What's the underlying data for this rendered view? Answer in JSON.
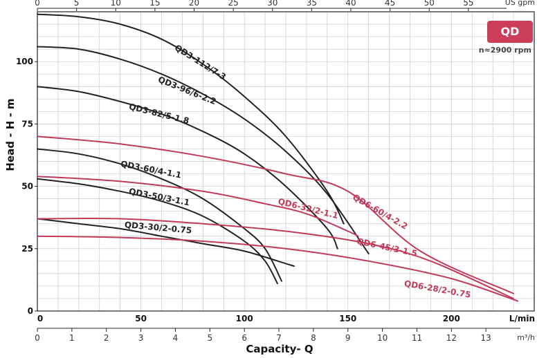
{
  "chart_data": {
    "type": "line",
    "badge": "QD",
    "speed": "n≈2900 rpm",
    "xlabel": "Capacity- Q",
    "ylabel": "Head - H - m",
    "x_unit_lmin": "L/min",
    "x_unit_m3h": "m³/h",
    "top_unit": "US gpm",
    "xlim_lmin": [
      0,
      240
    ],
    "ylim_m": [
      0,
      120
    ],
    "y_ticks": [
      0,
      25,
      50,
      75,
      100
    ],
    "x_ticks_lmin": [
      0,
      50,
      100,
      150,
      200
    ],
    "x_ticks_m3h": [
      0,
      1,
      2,
      3,
      4,
      5,
      6,
      7,
      8,
      9,
      10,
      11,
      12,
      13
    ],
    "x_ticks_gpm": [
      0,
      5,
      10,
      15,
      20,
      25,
      30,
      35,
      40,
      45,
      50,
      55
    ],
    "colors": {
      "qd3": "#222222",
      "qd6": "#c23a5a",
      "badge": "#cc3d5a"
    },
    "series": [
      {
        "name": "QD3-112/7-3",
        "family": "qd3",
        "q": [
          0,
          20,
          40,
          60,
          80,
          100,
          120,
          140,
          148
        ],
        "h": [
          119,
          118,
          115,
          109,
          99,
          86,
          70,
          48,
          35
        ]
      },
      {
        "name": "QD3-96/6-2.2",
        "family": "qd3",
        "q": [
          0,
          20,
          40,
          60,
          80,
          100,
          120,
          140,
          160
        ],
        "h": [
          106,
          105,
          101,
          95,
          87,
          77,
          64,
          47,
          23
        ]
      },
      {
        "name": "QD3-82/5-1.8",
        "family": "qd3",
        "q": [
          0,
          20,
          40,
          60,
          80,
          100,
          120,
          140,
          145
        ],
        "h": [
          90,
          88,
          84,
          79,
          72,
          63,
          50,
          33,
          25
        ]
      },
      {
        "name": "QD3-60/4-1.1",
        "family": "qd3",
        "q": [
          0,
          20,
          40,
          60,
          80,
          100,
          110,
          118
        ],
        "h": [
          65,
          63,
          59,
          53,
          45,
          33,
          25,
          12
        ]
      },
      {
        "name": "QD3-50/3-1.1",
        "family": "qd3",
        "q": [
          0,
          20,
          40,
          60,
          80,
          100,
          110,
          116
        ],
        "h": [
          53,
          51,
          48,
          44,
          38,
          28,
          20,
          11
        ]
      },
      {
        "name": "QD3-30/2-0.75",
        "family": "qd3",
        "q": [
          0,
          20,
          40,
          60,
          80,
          100,
          120,
          124
        ],
        "h": [
          37,
          35,
          33,
          30,
          27,
          24,
          19,
          18
        ]
      },
      {
        "name": "QD6-60/4-2.2",
        "family": "qd6",
        "q": [
          0,
          40,
          80,
          120,
          150,
          185,
          230
        ],
        "h": [
          70,
          67,
          62,
          55,
          48,
          24,
          7
        ]
      },
      {
        "name": "QD6-32/2-1.1",
        "family": "qd6",
        "q": [
          0,
          40,
          80,
          110,
          130,
          150,
          155
        ],
        "h": [
          54,
          52,
          48,
          43,
          39,
          32,
          30
        ]
      },
      {
        "name": "QD6-45/3-1.5",
        "family": "qd6",
        "q": [
          0,
          40,
          80,
          120,
          160,
          190,
          230
        ],
        "h": [
          37,
          37,
          35,
          32,
          27,
          20,
          5
        ]
      },
      {
        "name": "QD6-28/2-0.75",
        "family": "qd6",
        "q": [
          0,
          40,
          80,
          120,
          160,
          200,
          232
        ],
        "h": [
          30,
          29.5,
          28,
          25,
          20,
          13,
          4
        ]
      }
    ]
  }
}
